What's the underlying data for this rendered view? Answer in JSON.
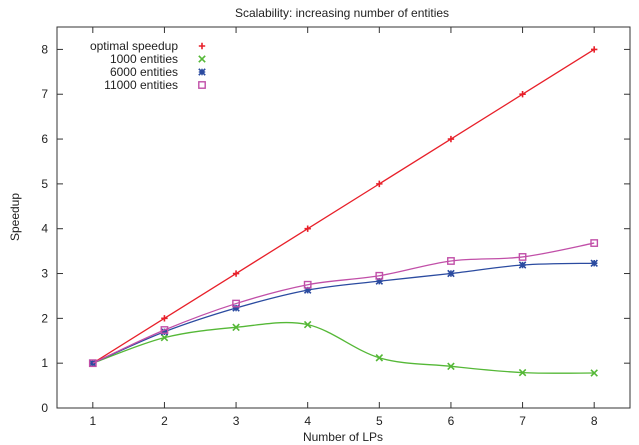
{
  "chart_data": {
    "type": "line",
    "title": "Scalability: increasing number of entities",
    "xlabel": "Number of LPs",
    "ylabel": "Speedup",
    "x": [
      1,
      2,
      3,
      4,
      5,
      6,
      7,
      8
    ],
    "xlim": [
      0.5,
      8.5
    ],
    "ylim": [
      0,
      8.5
    ],
    "xticks": [
      "1",
      "2",
      "3",
      "4",
      "5",
      "6",
      "7",
      "8"
    ],
    "yticks": [
      "0",
      "1",
      "2",
      "3",
      "4",
      "5",
      "6",
      "7",
      "8"
    ],
    "grid": false,
    "legend_position": "top-left",
    "series": [
      {
        "name": "optimal speedup",
        "color": "#e8202a",
        "marker": "plus",
        "smooth": false,
        "values": [
          1,
          2,
          3,
          4,
          5,
          6,
          7,
          8
        ]
      },
      {
        "name": "1000 entities",
        "color": "#55b837",
        "marker": "cross",
        "smooth": true,
        "values": [
          1.0,
          1.57,
          1.8,
          1.86,
          1.12,
          0.93,
          0.79,
          0.78
        ]
      },
      {
        "name": "6000 entities",
        "color": "#2b4ba0",
        "marker": "star",
        "smooth": true,
        "values": [
          1.0,
          1.7,
          2.23,
          2.63,
          2.83,
          3.0,
          3.19,
          3.23
        ]
      },
      {
        "name": "11000 entities",
        "color": "#c14fa8",
        "marker": "square",
        "smooth": true,
        "values": [
          1.0,
          1.74,
          2.33,
          2.75,
          2.95,
          3.28,
          3.37,
          3.68
        ]
      }
    ]
  }
}
